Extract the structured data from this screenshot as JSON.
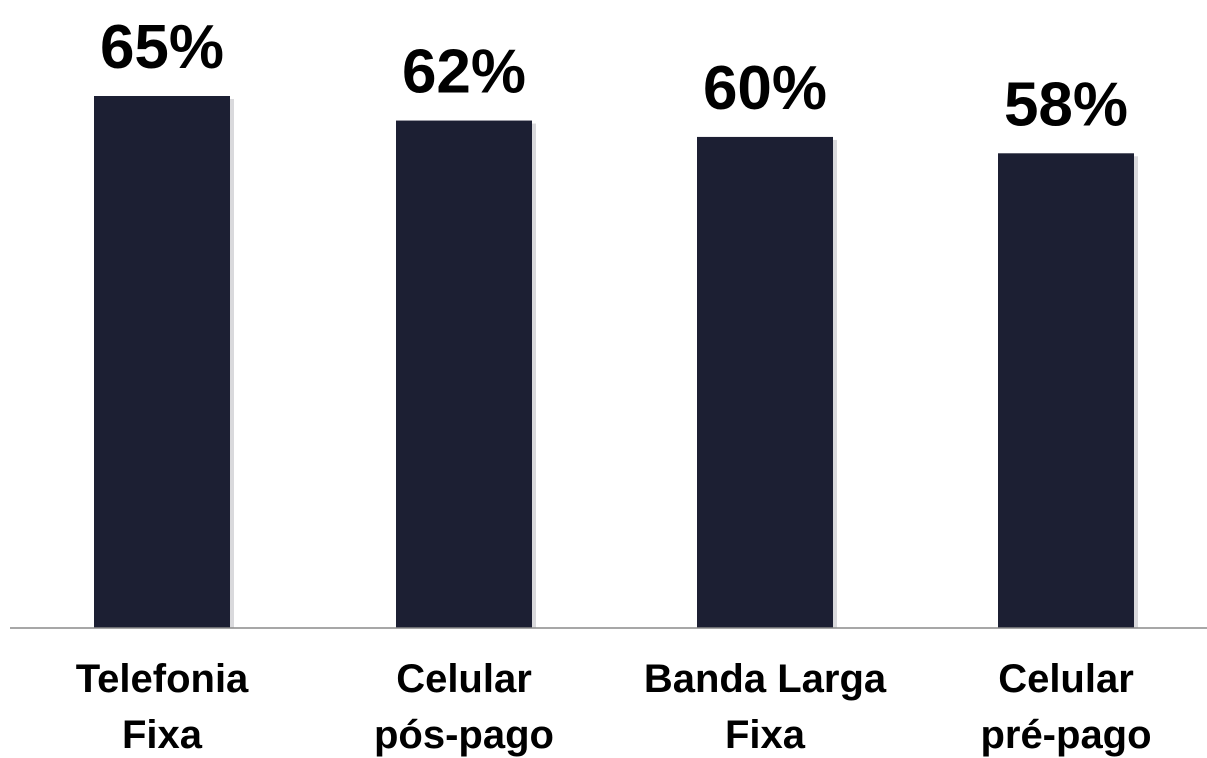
{
  "chart_data": {
    "type": "bar",
    "categories": [
      [
        "Telefonia",
        "Fixa"
      ],
      [
        "Celular",
        "pós-pago"
      ],
      [
        "Banda Larga",
        "Fixa"
      ],
      [
        "Celular",
        "pré-pago"
      ]
    ],
    "values": [
      65,
      62,
      60,
      58
    ],
    "value_labels": [
      "65%",
      "62%",
      "60%",
      "58%"
    ],
    "title": "",
    "xlabel": "",
    "ylabel": "",
    "ylim": [
      0,
      65
    ],
    "grid": false,
    "legend": "none",
    "unit": "%"
  },
  "colors": {
    "bar": "#1c1f33",
    "axis": "#8a8a8a",
    "text": "#000000"
  }
}
